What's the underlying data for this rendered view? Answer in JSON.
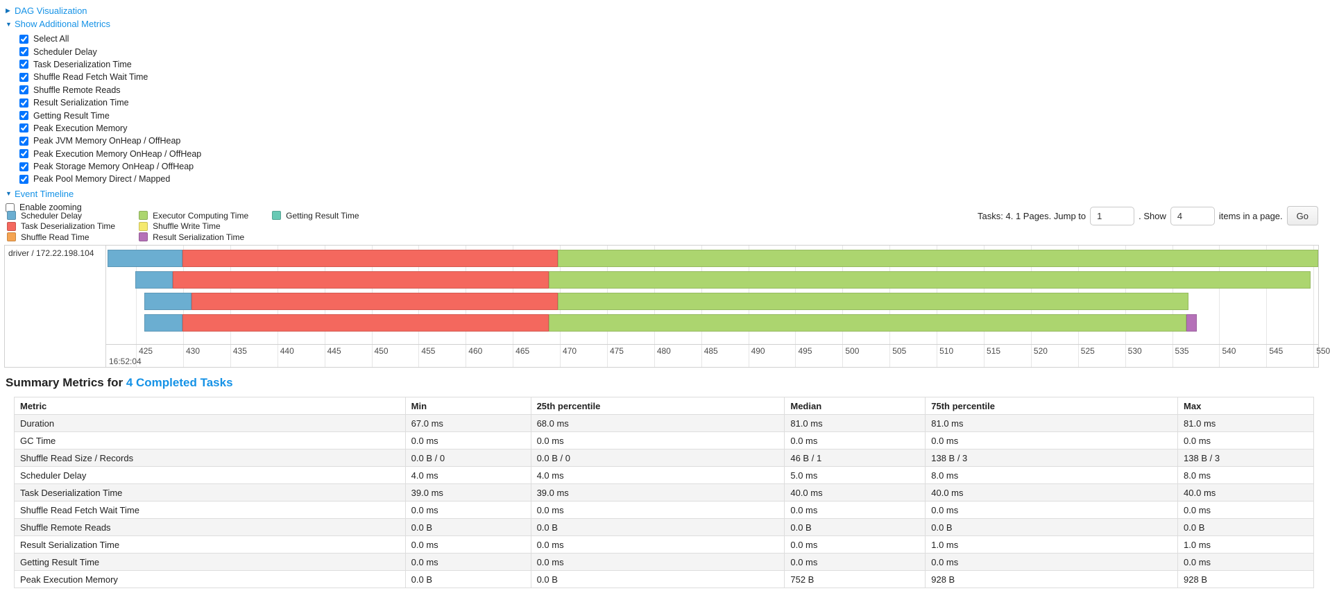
{
  "icons": {
    "caret_right": "▶",
    "caret_down": "▼"
  },
  "colors": {
    "link": "#1592e6",
    "scheduler_delay": "#6BAED1",
    "task_deserialization": "#F4685E",
    "shuffle_read": "#F5A452",
    "executor_computing": "#ACD56F",
    "shuffle_write": "#F5E96E",
    "result_serialization": "#B571B8",
    "getting_result": "#68C9B4"
  },
  "controls": {
    "dag": {
      "label": "DAG Visualization"
    },
    "metrics": {
      "label": "Show Additional Metrics"
    },
    "checkboxes": [
      "Select All",
      "Scheduler Delay",
      "Task Deserialization Time",
      "Shuffle Read Fetch Wait Time",
      "Shuffle Remote Reads",
      "Result Serialization Time",
      "Getting Result Time",
      "Peak Execution Memory",
      "Peak JVM Memory OnHeap / OffHeap",
      "Peak Execution Memory OnHeap / OffHeap",
      "Peak Storage Memory OnHeap / OffHeap",
      "Peak Pool Memory Direct / Mapped"
    ],
    "event_timeline": {
      "label": "Event Timeline"
    },
    "enable_zooming": "Enable zooming"
  },
  "legend": [
    {
      "label": "Scheduler Delay",
      "color_key": "scheduler_delay"
    },
    {
      "label": "Task Deserialization Time",
      "color_key": "task_deserialization"
    },
    {
      "label": "Shuffle Read Time",
      "color_key": "shuffle_read"
    },
    {
      "label": "Executor Computing Time",
      "color_key": "executor_computing"
    },
    {
      "label": "Shuffle Write Time",
      "color_key": "shuffle_write"
    },
    {
      "label": "Result Serialization Time",
      "color_key": "result_serialization"
    },
    {
      "label": "Getting Result Time",
      "color_key": "getting_result"
    }
  ],
  "pagination": {
    "prefix": "Tasks: 4. 1 Pages. Jump to",
    "jump_value": "1",
    "mid": ". Show",
    "show_value": "4",
    "suffix": "items in a page.",
    "go_label": "Go"
  },
  "chart_data": {
    "type": "timeline",
    "executor_label": "driver / 172.22.198.104",
    "x_unit": "milliseconds within second 16:52:04",
    "x_domain_ms": [
      421.9,
      550.5
    ],
    "ticks_ms": [
      425,
      430,
      435,
      440,
      445,
      450,
      455,
      460,
      465,
      470,
      475,
      480,
      485,
      490,
      495,
      500,
      505,
      510,
      515,
      520,
      525,
      530,
      535,
      540,
      545,
      550
    ],
    "major_tick_label": "16:52:04",
    "tasks": [
      {
        "segments": [
          {
            "name": "scheduler_delay",
            "start": 422.0,
            "end": 429.9
          },
          {
            "name": "task_deserialization",
            "start": 429.9,
            "end": 469.8
          },
          {
            "name": "executor_computing",
            "start": 469.8,
            "end": 551.0
          }
        ]
      },
      {
        "segments": [
          {
            "name": "scheduler_delay",
            "start": 424.9,
            "end": 428.9
          },
          {
            "name": "task_deserialization",
            "start": 428.9,
            "end": 468.8
          },
          {
            "name": "executor_computing",
            "start": 468.8,
            "end": 549.7
          }
        ]
      },
      {
        "segments": [
          {
            "name": "scheduler_delay",
            "start": 425.9,
            "end": 430.9
          },
          {
            "name": "task_deserialization",
            "start": 430.9,
            "end": 469.8
          },
          {
            "name": "executor_computing",
            "start": 469.8,
            "end": 536.7
          }
        ]
      },
      {
        "segments": [
          {
            "name": "scheduler_delay",
            "start": 425.9,
            "end": 429.9
          },
          {
            "name": "task_deserialization",
            "start": 429.9,
            "end": 468.8
          },
          {
            "name": "executor_computing",
            "start": 468.8,
            "end": 536.5
          },
          {
            "name": "result_serialization",
            "start": 536.5,
            "end": 537.6
          }
        ]
      }
    ]
  },
  "summary": {
    "title_prefix": "Summary Metrics for ",
    "title_link": "4 Completed Tasks",
    "headers": [
      "Metric",
      "Min",
      "25th percentile",
      "Median",
      "75th percentile",
      "Max"
    ],
    "rows": [
      [
        "Duration",
        "67.0 ms",
        "68.0 ms",
        "81.0 ms",
        "81.0 ms",
        "81.0 ms"
      ],
      [
        "GC Time",
        "0.0 ms",
        "0.0 ms",
        "0.0 ms",
        "0.0 ms",
        "0.0 ms"
      ],
      [
        "Shuffle Read Size / Records",
        "0.0 B / 0",
        "0.0 B / 0",
        "46 B / 1",
        "138 B / 3",
        "138 B / 3"
      ],
      [
        "Scheduler Delay",
        "4.0 ms",
        "4.0 ms",
        "5.0 ms",
        "8.0 ms",
        "8.0 ms"
      ],
      [
        "Task Deserialization Time",
        "39.0 ms",
        "39.0 ms",
        "40.0 ms",
        "40.0 ms",
        "40.0 ms"
      ],
      [
        "Shuffle Read Fetch Wait Time",
        "0.0 ms",
        "0.0 ms",
        "0.0 ms",
        "0.0 ms",
        "0.0 ms"
      ],
      [
        "Shuffle Remote Reads",
        "0.0 B",
        "0.0 B",
        "0.0 B",
        "0.0 B",
        "0.0 B"
      ],
      [
        "Result Serialization Time",
        "0.0 ms",
        "0.0 ms",
        "0.0 ms",
        "1.0 ms",
        "1.0 ms"
      ],
      [
        "Getting Result Time",
        "0.0 ms",
        "0.0 ms",
        "0.0 ms",
        "0.0 ms",
        "0.0 ms"
      ],
      [
        "Peak Execution Memory",
        "0.0 B",
        "0.0 B",
        "752 B",
        "928 B",
        "928 B"
      ]
    ]
  }
}
